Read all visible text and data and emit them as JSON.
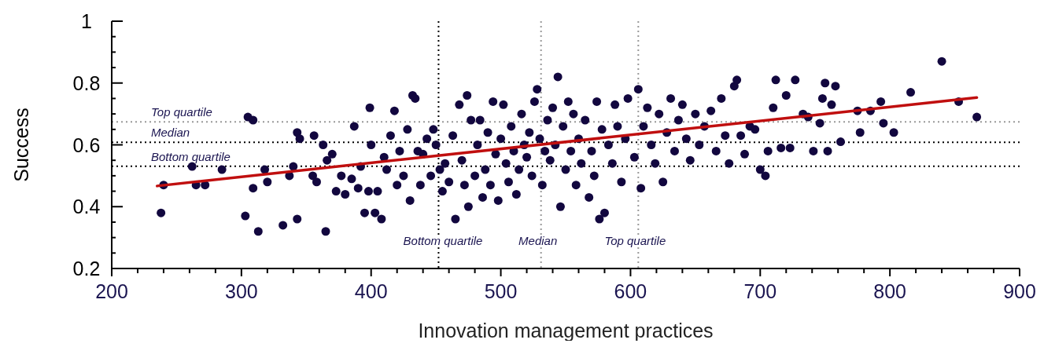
{
  "chart_data": {
    "type": "scatter",
    "xlabel": "Innovation management practices",
    "ylabel": "Success",
    "xlim": [
      200,
      900
    ],
    "ylim": [
      0.2,
      1
    ],
    "xticks": [
      200,
      {
        "value": 220,
        "label": null
      },
      {
        "value": 240,
        "label": null
      },
      {
        "value": 260,
        "label": null
      },
      {
        "value": 280,
        "label": null
      },
      300,
      {
        "value": 320,
        "label": null
      },
      {
        "value": 340,
        "label": null
      },
      {
        "value": 360,
        "label": null
      },
      {
        "value": 380,
        "label": null
      },
      400,
      {
        "value": 420,
        "label": null
      },
      {
        "value": 440,
        "label": null
      },
      {
        "value": 460,
        "label": null
      },
      {
        "value": 480,
        "label": null
      },
      500,
      {
        "value": 520,
        "label": null
      },
      {
        "value": 540,
        "label": null
      },
      {
        "value": 560,
        "label": null
      },
      {
        "value": 580,
        "label": null
      },
      600,
      {
        "value": 620,
        "label": null
      },
      {
        "value": 640,
        "label": null
      },
      {
        "value": 660,
        "label": null
      },
      {
        "value": 680,
        "label": null
      },
      700,
      {
        "value": 720,
        "label": null
      },
      {
        "value": 740,
        "label": null
      },
      {
        "value": 760,
        "label": null
      },
      {
        "value": 780,
        "label": null
      },
      800,
      {
        "value": 820,
        "label": null
      },
      {
        "value": 840,
        "label": null
      },
      {
        "value": 860,
        "label": null
      },
      {
        "value": 880,
        "label": null
      },
      900
    ],
    "yticks": [
      0.2,
      {
        "value": 0.25,
        "label": null
      },
      {
        "value": 0.3,
        "label": null
      },
      {
        "value": 0.35,
        "label": null
      },
      0.4,
      {
        "value": 0.45,
        "label": null
      },
      {
        "value": 0.5,
        "label": null
      },
      {
        "value": 0.55,
        "label": null
      },
      0.6,
      {
        "value": 0.65,
        "label": null
      },
      {
        "value": 0.7,
        "label": null
      },
      {
        "value": 0.75,
        "label": null
      },
      0.8,
      {
        "value": 0.85,
        "label": null
      },
      {
        "value": 0.9,
        "label": null
      },
      {
        "value": 0.95,
        "label": null
      },
      1
    ],
    "grid": false,
    "ref_lines": [
      {
        "axis": "y",
        "value": 0.674,
        "label": "Top quartile",
        "color": "#999999",
        "line_style": "dotted"
      },
      {
        "axis": "y",
        "value": 0.608,
        "label": "Median",
        "color": "#000000",
        "line_style": "dotted"
      },
      {
        "axis": "y",
        "value": 0.531,
        "label": "Bottom quartile",
        "color": "#000000",
        "line_style": "dotted"
      },
      {
        "axis": "x",
        "value": 452,
        "label": "Bottom quartile",
        "color": "#000000",
        "line_style": "dotted"
      },
      {
        "axis": "x",
        "value": 531,
        "label": "Median",
        "color": "#999999",
        "line_style": "dotted"
      },
      {
        "axis": "x",
        "value": 606,
        "label": "Top quartile",
        "color": "#999999",
        "line_style": "dotted"
      }
    ],
    "series": [
      {
        "color": "#12073f",
        "marker": "circle",
        "x": [
          238,
          240,
          262,
          265,
          272,
          285,
          303,
          305,
          309,
          309,
          313,
          318,
          320,
          332,
          337,
          340,
          343,
          343,
          345,
          355,
          356,
          358,
          363,
          365,
          366,
          370,
          373,
          377,
          380,
          385,
          387,
          390,
          392,
          395,
          398,
          399,
          400,
          403,
          405,
          408,
          410,
          412,
          415,
          418,
          420,
          422,
          425,
          428,
          430,
          432,
          434,
          436,
          438,
          440,
          443,
          446,
          448,
          450,
          453,
          455,
          457,
          460,
          463,
          465,
          468,
          470,
          472,
          474,
          475,
          477,
          480,
          482,
          484,
          486,
          488,
          490,
          492,
          494,
          496,
          498,
          500,
          502,
          504,
          506,
          508,
          510,
          512,
          514,
          516,
          518,
          520,
          522,
          524,
          526,
          528,
          530,
          532,
          534,
          536,
          538,
          540,
          542,
          544,
          546,
          548,
          550,
          552,
          554,
          556,
          558,
          560,
          562,
          565,
          568,
          570,
          572,
          574,
          576,
          578,
          580,
          583,
          586,
          588,
          590,
          593,
          596,
          598,
          603,
          606,
          608,
          610,
          613,
          616,
          619,
          622,
          625,
          628,
          631,
          634,
          637,
          640,
          643,
          646,
          650,
          653,
          657,
          662,
          666,
          670,
          673,
          676,
          680,
          682,
          685,
          688,
          692,
          696,
          700,
          704,
          706,
          710,
          712,
          716,
          720,
          723,
          727,
          733,
          737,
          741,
          746,
          748,
          750,
          752,
          755,
          758,
          762,
          775,
          777,
          785,
          793,
          795,
          803,
          816,
          840,
          853,
          867
        ],
        "values": [
          0.38,
          0.47,
          0.53,
          0.47,
          0.47,
          0.52,
          0.37,
          0.69,
          0.68,
          0.46,
          0.32,
          0.52,
          0.48,
          0.34,
          0.5,
          0.53,
          0.36,
          0.64,
          0.62,
          0.5,
          0.63,
          0.48,
          0.6,
          0.32,
          0.55,
          0.57,
          0.45,
          0.5,
          0.44,
          0.49,
          0.66,
          0.46,
          0.53,
          0.38,
          0.45,
          0.72,
          0.6,
          0.38,
          0.45,
          0.36,
          0.56,
          0.52,
          0.63,
          0.71,
          0.47,
          0.58,
          0.5,
          0.65,
          0.42,
          0.76,
          0.75,
          0.58,
          0.47,
          0.57,
          0.62,
          0.5,
          0.65,
          0.6,
          0.52,
          0.45,
          0.54,
          0.48,
          0.63,
          0.36,
          0.73,
          0.55,
          0.47,
          0.76,
          0.4,
          0.68,
          0.5,
          0.6,
          0.68,
          0.43,
          0.52,
          0.64,
          0.47,
          0.74,
          0.57,
          0.42,
          0.62,
          0.73,
          0.54,
          0.48,
          0.66,
          0.58,
          0.44,
          0.52,
          0.7,
          0.6,
          0.56,
          0.64,
          0.5,
          0.74,
          0.78,
          0.62,
          0.47,
          0.58,
          0.68,
          0.55,
          0.72,
          0.6,
          0.82,
          0.4,
          0.66,
          0.52,
          0.74,
          0.58,
          0.7,
          0.47,
          0.62,
          0.54,
          0.68,
          0.43,
          0.58,
          0.5,
          0.74,
          0.36,
          0.65,
          0.38,
          0.6,
          0.54,
          0.73,
          0.66,
          0.48,
          0.62,
          0.75,
          0.56,
          0.78,
          0.46,
          0.66,
          0.72,
          0.6,
          0.54,
          0.7,
          0.48,
          0.64,
          0.75,
          0.58,
          0.68,
          0.73,
          0.62,
          0.55,
          0.7,
          0.6,
          0.66,
          0.71,
          0.58,
          0.75,
          0.63,
          0.54,
          0.79,
          0.81,
          0.63,
          0.57,
          0.66,
          0.65,
          0.52,
          0.5,
          0.58,
          0.72,
          0.81,
          0.59,
          0.76,
          0.59,
          0.81,
          0.7,
          0.69,
          0.58,
          0.67,
          0.75,
          0.8,
          0.58,
          0.73,
          0.79,
          0.61,
          0.71,
          0.64,
          0.71,
          0.74,
          0.67,
          0.64,
          0.77,
          0.87,
          0.74,
          0.69
        ]
      },
      {
        "type": "line",
        "color": "#c00f0f",
        "x": [
          235,
          867
        ],
        "values": [
          0.467,
          0.753
        ]
      }
    ]
  }
}
